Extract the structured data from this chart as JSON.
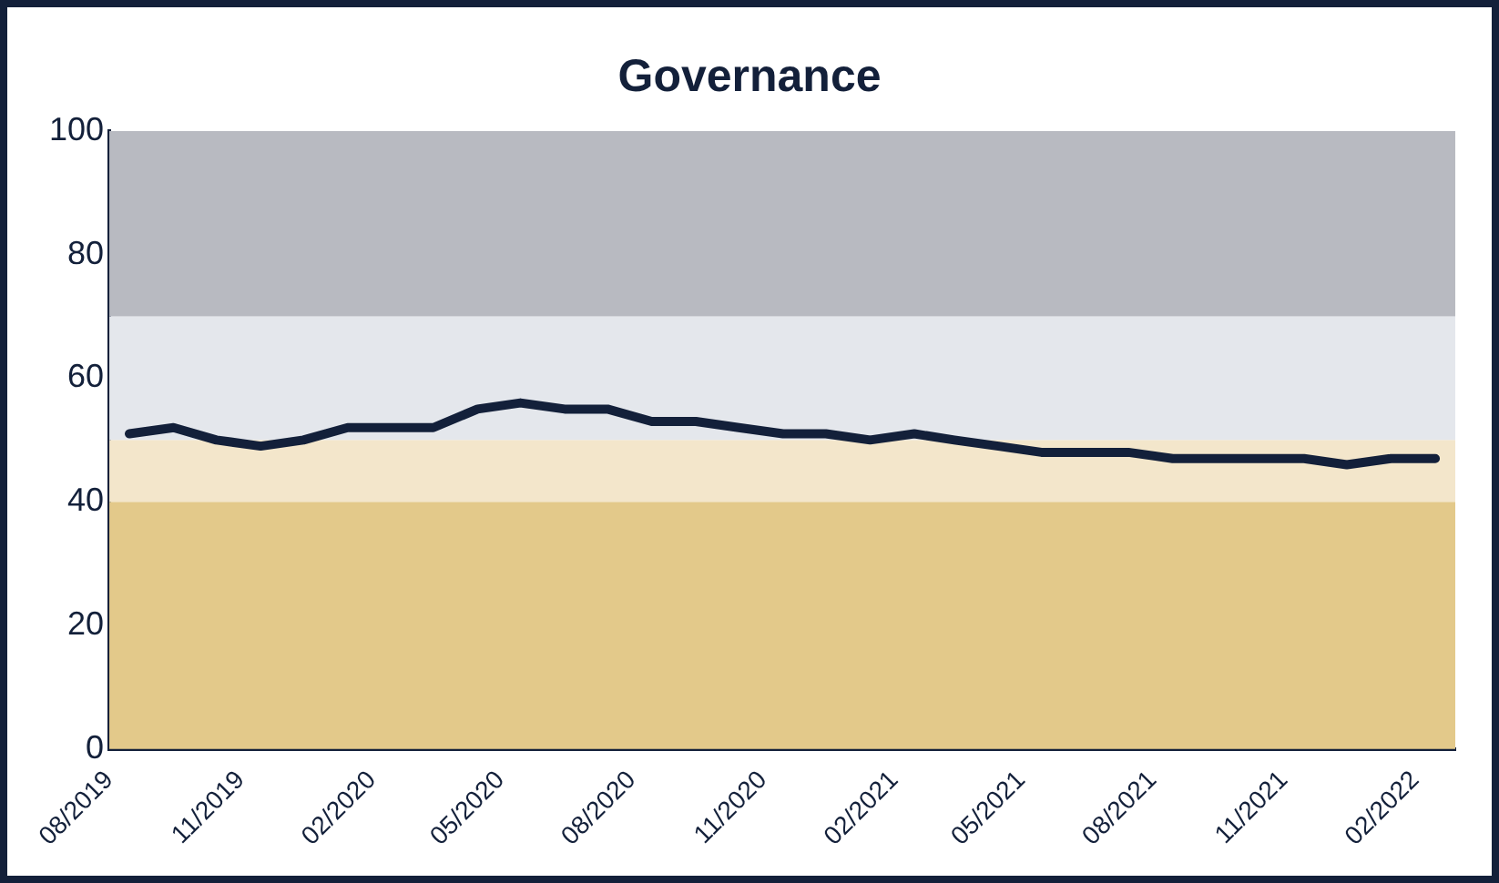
{
  "chart_data": {
    "type": "line",
    "title": "Governance",
    "x": [
      "2019-08-15",
      "2019-09-15",
      "2019-10-15",
      "2019-11-15",
      "2019-12-15",
      "2020-01-15",
      "2020-02-15",
      "2020-03-15",
      "2020-04-15",
      "2020-05-15",
      "2020-06-15",
      "2020-07-15",
      "2020-08-15",
      "2020-09-15",
      "2020-10-15",
      "2020-11-15",
      "2020-12-15",
      "2021-01-15",
      "2021-02-15",
      "2021-03-15",
      "2021-04-15",
      "2021-05-15",
      "2021-06-15",
      "2021-07-15",
      "2021-08-15",
      "2021-09-15",
      "2021-10-15",
      "2021-11-15",
      "2021-12-15",
      "2022-01-15",
      "2022-02-15"
    ],
    "series": [
      {
        "color": "#13203a",
        "values": [
          51,
          52,
          50,
          49,
          50,
          52,
          52,
          52,
          55,
          56,
          55,
          55,
          53,
          53,
          52,
          51,
          51,
          50,
          51,
          50,
          49,
          48,
          48,
          48,
          47,
          47,
          47,
          47,
          46,
          47,
          47
        ]
      }
    ],
    "xlim": [
      "2019-08",
      "2022-03"
    ],
    "xticks": [
      {
        "value": "2019-08",
        "label": "08/2019"
      },
      {
        "value": "2019-11",
        "label": "11/2019"
      },
      {
        "value": "2020-02",
        "label": "02/2020"
      },
      {
        "value": "2020-05",
        "label": "05/2020"
      },
      {
        "value": "2020-08",
        "label": "08/2020"
      },
      {
        "value": "2020-11",
        "label": "11/2020"
      },
      {
        "value": "2021-02",
        "label": "02/2021"
      },
      {
        "value": "2021-05",
        "label": "05/2021"
      },
      {
        "value": "2021-08",
        "label": "08/2021"
      },
      {
        "value": "2021-11",
        "label": "11/2021"
      },
      {
        "value": "2022-02",
        "label": "02/2022"
      }
    ],
    "ylim": [
      0,
      100
    ],
    "yticks": [
      0,
      20,
      40,
      60,
      80,
      100
    ],
    "bands": [
      {
        "axis": "y",
        "from": 0,
        "to": 40,
        "color": "#e3c98a"
      },
      {
        "axis": "y",
        "from": 40,
        "to": 50,
        "color": "#f3e6cb"
      },
      {
        "axis": "y",
        "from": 50,
        "to": 70,
        "color": "#e4e7ec"
      },
      {
        "axis": "y",
        "from": 70,
        "to": 100,
        "color": "#b8bac1"
      }
    ],
    "grid": false,
    "legend": false,
    "marker": "none",
    "line_style": "solid"
  }
}
